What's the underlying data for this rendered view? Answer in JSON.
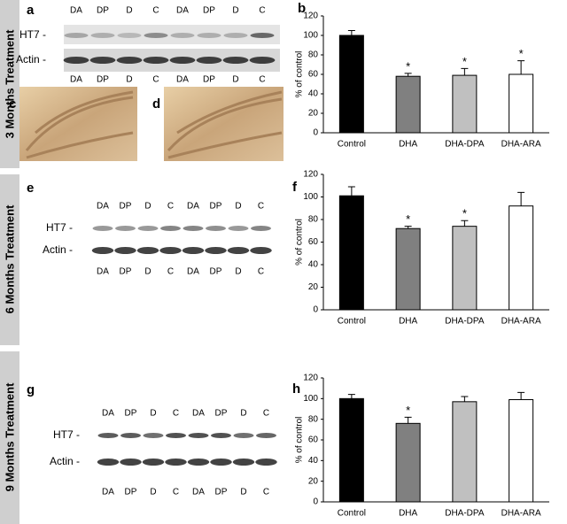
{
  "sections": [
    "3 Months Treatment",
    "6 Months Treatment",
    "9 Months Treatment"
  ],
  "blots": [
    {
      "label": "a",
      "lanes_top": [
        "DA",
        "DP",
        "D",
        "C",
        "DA",
        "DP",
        "D",
        "C"
      ],
      "lanes_bottom": [
        "DA",
        "DP",
        "D",
        "C",
        "DA",
        "DP",
        "D",
        "C"
      ],
      "rows": [
        "HT7 -",
        "Actin -"
      ]
    },
    {
      "label": "e",
      "lanes_top": [
        "DA",
        "DP",
        "D",
        "C",
        "DA",
        "DP",
        "D",
        "C"
      ],
      "lanes_bottom": [
        "DA",
        "DP",
        "D",
        "C",
        "DA",
        "DP",
        "D",
        "C"
      ],
      "rows": [
        "HT7 -",
        "Actin -"
      ]
    },
    {
      "label": "g",
      "lanes_top": [
        "DA",
        "DP",
        "D",
        "C",
        "DA",
        "DP",
        "D",
        "C"
      ],
      "lanes_bottom": [
        "DA",
        "DP",
        "D",
        "C",
        "DA",
        "DP",
        "D",
        "C"
      ],
      "rows": [
        "HT7 -",
        "Actin -"
      ]
    }
  ],
  "images": [
    {
      "label": "c"
    },
    {
      "label": "d"
    }
  ],
  "chart_data": [
    {
      "type": "bar",
      "label": "b",
      "y_label": "% of control",
      "categories": [
        "Control",
        "DHA",
        "DHA-DPA",
        "DHA-ARA"
      ],
      "values": [
        100,
        58,
        59,
        60
      ],
      "errors": [
        5,
        3,
        7,
        14
      ],
      "colors": [
        "#000000",
        "#808080",
        "#c0c0c0",
        "#ffffff"
      ],
      "ylim": [
        0,
        120
      ],
      "yticks": [
        0,
        20,
        40,
        60,
        80,
        100,
        120
      ],
      "annotations": [
        {
          "category": "DHA",
          "text": "*"
        },
        {
          "category": "DHA-DPA",
          "text": "*"
        },
        {
          "category": "DHA-ARA",
          "text": "*"
        }
      ]
    },
    {
      "type": "bar",
      "label": "f",
      "y_label": "% of control",
      "categories": [
        "Control",
        "DHA",
        "DHA-DPA",
        "DHA-ARA"
      ],
      "values": [
        101,
        72,
        74,
        92
      ],
      "errors": [
        8,
        2,
        5,
        12
      ],
      "colors": [
        "#000000",
        "#808080",
        "#c0c0c0",
        "#ffffff"
      ],
      "ylim": [
        0,
        120
      ],
      "yticks": [
        0,
        20,
        40,
        60,
        80,
        100,
        120
      ],
      "annotations": [
        {
          "category": "DHA",
          "text": "*"
        },
        {
          "category": "DHA-DPA",
          "text": "*"
        }
      ]
    },
    {
      "type": "bar",
      "label": "h",
      "y_label": "% of control",
      "categories": [
        "Control",
        "DHA",
        "DHA-DPA",
        "DHA-ARA"
      ],
      "values": [
        100,
        76,
        97,
        99
      ],
      "errors": [
        4,
        6,
        5,
        7
      ],
      "colors": [
        "#000000",
        "#808080",
        "#c0c0c0",
        "#ffffff"
      ],
      "ylim": [
        0,
        120
      ],
      "yticks": [
        0,
        20,
        40,
        60,
        80,
        100,
        120
      ],
      "annotations": [
        {
          "category": "DHA",
          "text": "*"
        }
      ]
    }
  ]
}
